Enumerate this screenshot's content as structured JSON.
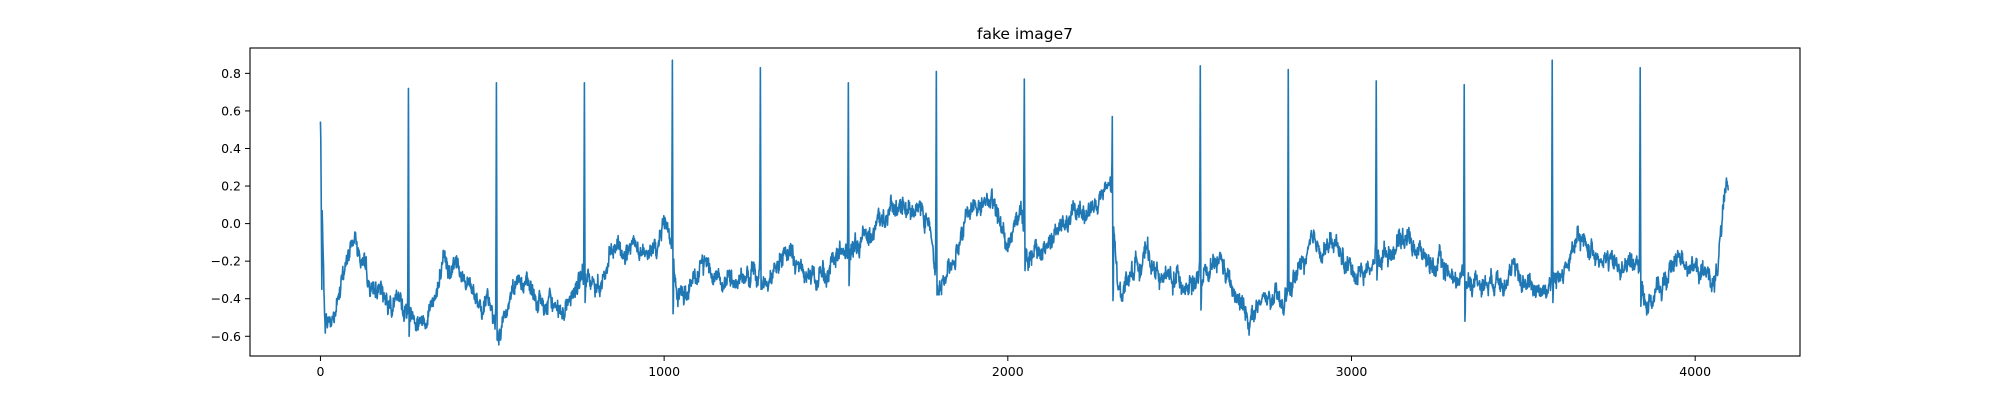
{
  "chart_data": {
    "type": "line",
    "title": "fake image7",
    "xlabel": "",
    "ylabel": "",
    "xlim": [
      -205,
      4305
    ],
    "ylim": [
      -0.705,
      0.935
    ],
    "x_ticks": [
      0,
      1000,
      2000,
      3000,
      4000
    ],
    "y_ticks": [
      -0.6,
      -0.4,
      -0.2,
      0.0,
      0.2,
      0.4,
      0.6,
      0.8
    ],
    "x_tick_labels": [
      "0",
      "1000",
      "2000",
      "3000",
      "4000"
    ],
    "y_tick_labels": [
      "−0.6",
      "−0.4",
      "−0.2",
      "0.0",
      "0.2",
      "0.4",
      "0.6",
      "0.8"
    ],
    "grid": false,
    "legend": "none",
    "series": [
      {
        "color": "#1f77b4",
        "n_points": 4097,
        "x_range": [
          0,
          4096
        ],
        "start_value": 0.54,
        "end_value": 0.18,
        "spikes": [
          {
            "x": 256,
            "peak": 0.72,
            "trough": -0.6
          },
          {
            "x": 512,
            "peak": 0.75,
            "trough": -0.62
          },
          {
            "x": 768,
            "peak": 0.75,
            "trough": -0.42
          },
          {
            "x": 1024,
            "peak": 0.87,
            "trough": -0.48
          },
          {
            "x": 1280,
            "peak": 0.83,
            "trough": -0.35
          },
          {
            "x": 1536,
            "peak": 0.75,
            "trough": -0.33
          },
          {
            "x": 1792,
            "peak": 0.81,
            "trough": -0.38
          },
          {
            "x": 2048,
            "peak": 0.77,
            "trough": -0.25
          },
          {
            "x": 2304,
            "peak": 0.57,
            "trough": -0.41
          },
          {
            "x": 2560,
            "peak": 0.84,
            "trough": -0.46
          },
          {
            "x": 2816,
            "peak": 0.82,
            "trough": -0.36
          },
          {
            "x": 3072,
            "peak": 0.76,
            "trough": -0.3
          },
          {
            "x": 3328,
            "peak": 0.74,
            "trough": -0.52
          },
          {
            "x": 3584,
            "peak": 0.87,
            "trough": -0.42
          },
          {
            "x": 3840,
            "peak": 0.83,
            "trough": -0.44
          }
        ],
        "baseline": [
          {
            "x": 0,
            "y": 0.54
          },
          {
            "x": 12,
            "y": -0.52
          },
          {
            "x": 40,
            "y": -0.5
          },
          {
            "x": 70,
            "y": -0.25
          },
          {
            "x": 100,
            "y": -0.05
          },
          {
            "x": 140,
            "y": -0.35
          },
          {
            "x": 200,
            "y": -0.4
          },
          {
            "x": 240,
            "y": -0.45
          },
          {
            "x": 300,
            "y": -0.5
          },
          {
            "x": 360,
            "y": -0.25
          },
          {
            "x": 400,
            "y": -0.2
          },
          {
            "x": 440,
            "y": -0.35
          },
          {
            "x": 490,
            "y": -0.45
          },
          {
            "x": 520,
            "y": -0.6
          },
          {
            "x": 570,
            "y": -0.25
          },
          {
            "x": 600,
            "y": -0.35
          },
          {
            "x": 650,
            "y": -0.45
          },
          {
            "x": 700,
            "y": -0.45
          },
          {
            "x": 760,
            "y": -0.3
          },
          {
            "x": 800,
            "y": -0.35
          },
          {
            "x": 860,
            "y": -0.15
          },
          {
            "x": 900,
            "y": -0.15
          },
          {
            "x": 960,
            "y": -0.2
          },
          {
            "x": 1010,
            "y": 0.05
          },
          {
            "x": 1040,
            "y": -0.4
          },
          {
            "x": 1080,
            "y": -0.35
          },
          {
            "x": 1120,
            "y": -0.2
          },
          {
            "x": 1180,
            "y": -0.3
          },
          {
            "x": 1240,
            "y": -0.28
          },
          {
            "x": 1300,
            "y": -0.3
          },
          {
            "x": 1360,
            "y": -0.15
          },
          {
            "x": 1420,
            "y": -0.3
          },
          {
            "x": 1480,
            "y": -0.25
          },
          {
            "x": 1520,
            "y": -0.15
          },
          {
            "x": 1560,
            "y": -0.15
          },
          {
            "x": 1600,
            "y": 0.0
          },
          {
            "x": 1660,
            "y": 0.05
          },
          {
            "x": 1720,
            "y": 0.1
          },
          {
            "x": 1770,
            "y": 0.05
          },
          {
            "x": 1800,
            "y": -0.35
          },
          {
            "x": 1840,
            "y": -0.2
          },
          {
            "x": 1880,
            "y": 0.05
          },
          {
            "x": 1940,
            "y": 0.15
          },
          {
            "x": 2000,
            "y": -0.1
          },
          {
            "x": 2040,
            "y": 0.1
          },
          {
            "x": 2060,
            "y": -0.2
          },
          {
            "x": 2100,
            "y": -0.15
          },
          {
            "x": 2140,
            "y": -0.05
          },
          {
            "x": 2200,
            "y": 0.05
          },
          {
            "x": 2260,
            "y": 0.1
          },
          {
            "x": 2300,
            "y": 0.2
          },
          {
            "x": 2320,
            "y": -0.38
          },
          {
            "x": 2360,
            "y": -0.25
          },
          {
            "x": 2400,
            "y": -0.15
          },
          {
            "x": 2450,
            "y": -0.3
          },
          {
            "x": 2500,
            "y": -0.3
          },
          {
            "x": 2540,
            "y": -0.3
          },
          {
            "x": 2580,
            "y": -0.3
          },
          {
            "x": 2620,
            "y": -0.2
          },
          {
            "x": 2660,
            "y": -0.4
          },
          {
            "x": 2700,
            "y": -0.5
          },
          {
            "x": 2760,
            "y": -0.4
          },
          {
            "x": 2800,
            "y": -0.45
          },
          {
            "x": 2830,
            "y": -0.3
          },
          {
            "x": 2880,
            "y": -0.15
          },
          {
            "x": 2940,
            "y": -0.1
          },
          {
            "x": 3000,
            "y": -0.25
          },
          {
            "x": 3040,
            "y": -0.25
          },
          {
            "x": 3100,
            "y": -0.15
          },
          {
            "x": 3160,
            "y": -0.05
          },
          {
            "x": 3220,
            "y": -0.2
          },
          {
            "x": 3280,
            "y": -0.25
          },
          {
            "x": 3320,
            "y": -0.3
          },
          {
            "x": 3350,
            "y": -0.3
          },
          {
            "x": 3400,
            "y": -0.3
          },
          {
            "x": 3450,
            "y": -0.25
          },
          {
            "x": 3500,
            "y": -0.3
          },
          {
            "x": 3560,
            "y": -0.35
          },
          {
            "x": 3600,
            "y": -0.3
          },
          {
            "x": 3660,
            "y": -0.1
          },
          {
            "x": 3720,
            "y": -0.15
          },
          {
            "x": 3780,
            "y": -0.25
          },
          {
            "x": 3830,
            "y": -0.2
          },
          {
            "x": 3860,
            "y": -0.42
          },
          {
            "x": 3900,
            "y": -0.35
          },
          {
            "x": 3960,
            "y": -0.15
          },
          {
            "x": 4000,
            "y": -0.25
          },
          {
            "x": 4060,
            "y": -0.3
          },
          {
            "x": 4080,
            "y": 0.02
          },
          {
            "x": 4096,
            "y": 0.18
          }
        ]
      }
    ]
  }
}
